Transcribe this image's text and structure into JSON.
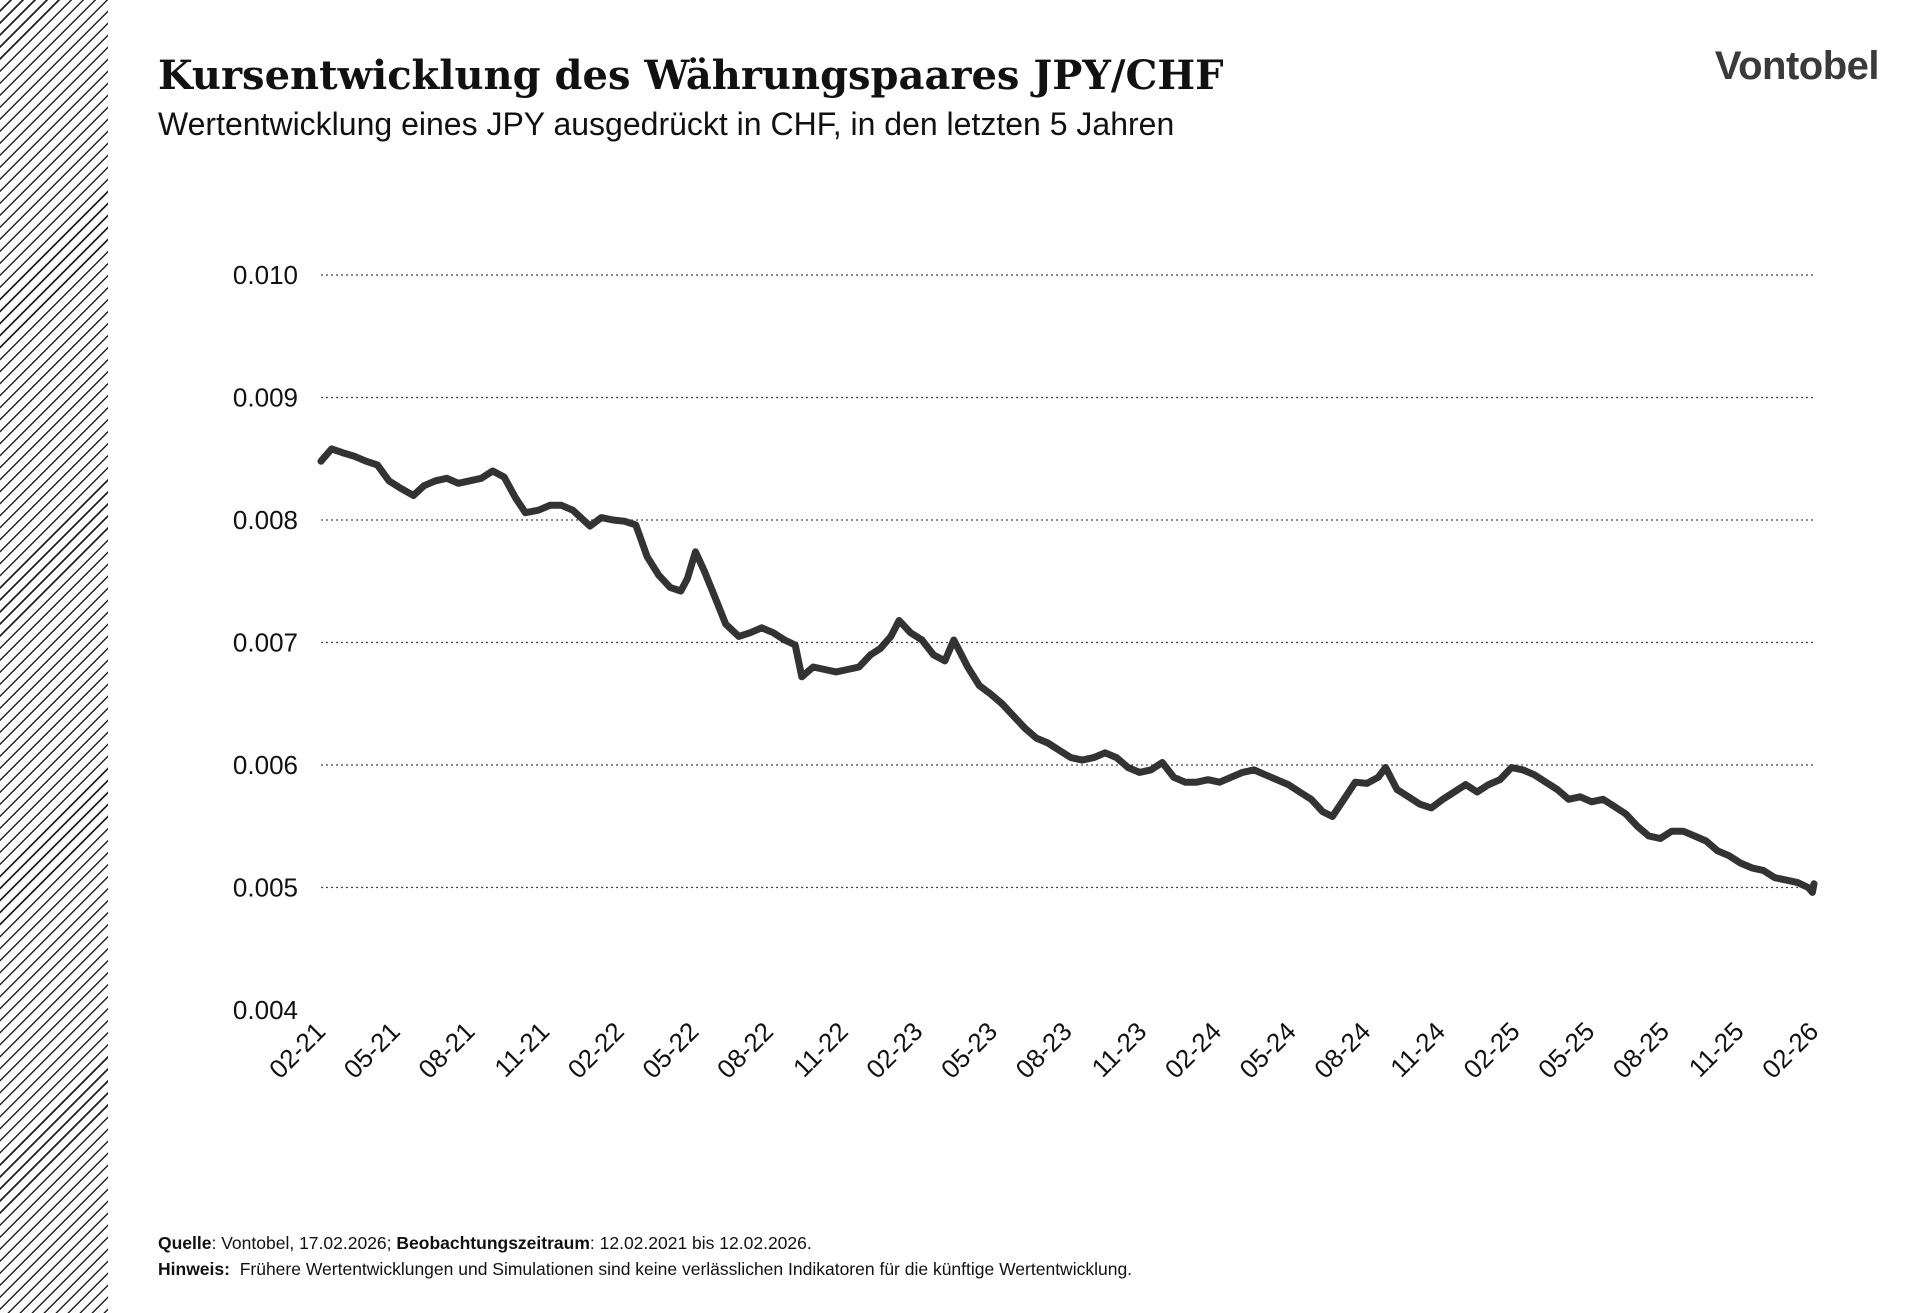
{
  "header": {
    "title": "Kursentwicklung des Währungspaares JPY/CHF",
    "subtitle": "Wertentwicklung eines JPY ausgedrückt in CHF, in den letzten 5 Jahren",
    "logo": "Vontobel"
  },
  "footer": {
    "source_label": "Quelle",
    "source_text": ": Vontobel, 17.02.2026; ",
    "period_label": "Beobachtungszeitraum",
    "period_text": ": 12.02.2021 bis 12.02.2026.",
    "note_label": "Hinweis:",
    "note_text": "Frühere Wertentwicklungen und Simulationen sind keine verlässlichen Indikatoren für die künftige Wertentwicklung."
  },
  "colors": {
    "line": "#333333",
    "grid": "#444444",
    "hatch": "#222222"
  },
  "chart_data": {
    "type": "line",
    "title": "Kursentwicklung des Währungspaares JPY/CHF",
    "subtitle": "Wertentwicklung eines JPY ausgedrückt in CHF, in den letzten 5 Jahren",
    "xlabel": "",
    "ylabel": "",
    "ylim": [
      0.004,
      0.01
    ],
    "yticks": [
      "0.010",
      "0.009",
      "0.008",
      "0.007",
      "0.006",
      "0.005",
      "0.004"
    ],
    "ytick_values": [
      0.01,
      0.009,
      0.008,
      0.007,
      0.006,
      0.005,
      0.004
    ],
    "xticks": [
      "02-21",
      "05-21",
      "08-21",
      "11-21",
      "02-22",
      "05-22",
      "08-22",
      "11-22",
      "02-23",
      "05-23",
      "08-23",
      "11-23",
      "02-24",
      "05-24",
      "08-24",
      "11-24",
      "02-25",
      "05-25",
      "08-25",
      "11-25",
      "02-26"
    ],
    "xrange": [
      "2021-02-12",
      "2026-02-12"
    ],
    "grid": true,
    "legend": "none",
    "series": [
      {
        "values": [
          [
            "2021-02-12",
            0.00848
          ],
          [
            "2021-02-25",
            0.00858
          ],
          [
            "2021-03-10",
            0.00855
          ],
          [
            "2021-03-25",
            0.00852
          ],
          [
            "2021-04-08",
            0.00848
          ],
          [
            "2021-04-22",
            0.00845
          ],
          [
            "2021-05-06",
            0.00832
          ],
          [
            "2021-05-20",
            0.00826
          ],
          [
            "2021-06-05",
            0.0082
          ],
          [
            "2021-06-18",
            0.00828
          ],
          [
            "2021-07-02",
            0.00832
          ],
          [
            "2021-07-16",
            0.00834
          ],
          [
            "2021-07-30",
            0.0083
          ],
          [
            "2021-08-13",
            0.00832
          ],
          [
            "2021-08-27",
            0.00834
          ],
          [
            "2021-09-10",
            0.0084
          ],
          [
            "2021-09-24",
            0.00835
          ],
          [
            "2021-10-08",
            0.00818
          ],
          [
            "2021-10-20",
            0.00806
          ],
          [
            "2021-11-05",
            0.00808
          ],
          [
            "2021-11-19",
            0.00812
          ],
          [
            "2021-12-03",
            0.00812
          ],
          [
            "2021-12-17",
            0.00808
          ],
          [
            "2022-01-07",
            0.00795
          ],
          [
            "2022-01-21",
            0.00802
          ],
          [
            "2022-02-04",
            0.008
          ],
          [
            "2022-02-18",
            0.00799
          ],
          [
            "2022-03-04",
            0.00796
          ],
          [
            "2022-03-18",
            0.0077
          ],
          [
            "2022-04-01",
            0.00755
          ],
          [
            "2022-04-15",
            0.00745
          ],
          [
            "2022-04-28",
            0.00742
          ],
          [
            "2022-05-06",
            0.00752
          ],
          [
            "2022-05-16",
            0.00774
          ],
          [
            "2022-05-27",
            0.00758
          ],
          [
            "2022-06-10",
            0.00735
          ],
          [
            "2022-06-22",
            0.00715
          ],
          [
            "2022-07-08",
            0.00705
          ],
          [
            "2022-07-22",
            0.00708
          ],
          [
            "2022-08-05",
            0.00712
          ],
          [
            "2022-08-19",
            0.00708
          ],
          [
            "2022-09-02",
            0.00702
          ],
          [
            "2022-09-15",
            0.00698
          ],
          [
            "2022-09-23",
            0.00672
          ],
          [
            "2022-10-07",
            0.0068
          ],
          [
            "2022-10-21",
            0.00678
          ],
          [
            "2022-11-04",
            0.00676
          ],
          [
            "2022-11-18",
            0.00678
          ],
          [
            "2022-12-02",
            0.0068
          ],
          [
            "2022-12-16",
            0.0069
          ],
          [
            "2022-12-28",
            0.00695
          ],
          [
            "2023-01-10",
            0.00705
          ],
          [
            "2023-01-20",
            0.00718
          ],
          [
            "2023-02-03",
            0.00708
          ],
          [
            "2023-02-17",
            0.00702
          ],
          [
            "2023-03-03",
            0.0069
          ],
          [
            "2023-03-17",
            0.00685
          ],
          [
            "2023-03-28",
            0.00702
          ],
          [
            "2023-04-14",
            0.0068
          ],
          [
            "2023-04-28",
            0.00665
          ],
          [
            "2023-05-12",
            0.00658
          ],
          [
            "2023-05-26",
            0.0065
          ],
          [
            "2023-06-09",
            0.0064
          ],
          [
            "2023-06-23",
            0.0063
          ],
          [
            "2023-07-07",
            0.00622
          ],
          [
            "2023-07-21",
            0.00618
          ],
          [
            "2023-08-04",
            0.00612
          ],
          [
            "2023-08-18",
            0.00606
          ],
          [
            "2023-09-01",
            0.00604
          ],
          [
            "2023-09-15",
            0.00606
          ],
          [
            "2023-09-29",
            0.0061
          ],
          [
            "2023-10-13",
            0.00606
          ],
          [
            "2023-10-27",
            0.00598
          ],
          [
            "2023-11-10",
            0.00594
          ],
          [
            "2023-11-24",
            0.00596
          ],
          [
            "2023-12-08",
            0.00602
          ],
          [
            "2023-12-22",
            0.0059
          ],
          [
            "2024-01-05",
            0.00586
          ],
          [
            "2024-01-19",
            0.00586
          ],
          [
            "2024-02-02",
            0.00588
          ],
          [
            "2024-02-16",
            0.00586
          ],
          [
            "2024-03-01",
            0.0059
          ],
          [
            "2024-03-15",
            0.00594
          ],
          [
            "2024-03-29",
            0.00596
          ],
          [
            "2024-04-12",
            0.00592
          ],
          [
            "2024-04-26",
            0.00588
          ],
          [
            "2024-05-10",
            0.00584
          ],
          [
            "2024-05-24",
            0.00578
          ],
          [
            "2024-06-07",
            0.00572
          ],
          [
            "2024-06-21",
            0.00562
          ],
          [
            "2024-07-03",
            0.00558
          ],
          [
            "2024-07-17",
            0.00572
          ],
          [
            "2024-07-31",
            0.00586
          ],
          [
            "2024-08-14",
            0.00585
          ],
          [
            "2024-08-28",
            0.0059
          ],
          [
            "2024-09-06",
            0.00598
          ],
          [
            "2024-09-20",
            0.0058
          ],
          [
            "2024-10-04",
            0.00574
          ],
          [
            "2024-10-18",
            0.00568
          ],
          [
            "2024-11-01",
            0.00565
          ],
          [
            "2024-11-15",
            0.00572
          ],
          [
            "2024-11-29",
            0.00578
          ],
          [
            "2024-12-13",
            0.00584
          ],
          [
            "2024-12-27",
            0.00578
          ],
          [
            "2025-01-10",
            0.00584
          ],
          [
            "2025-01-24",
            0.00588
          ],
          [
            "2025-02-07",
            0.00598
          ],
          [
            "2025-02-21",
            0.00596
          ],
          [
            "2025-03-07",
            0.00592
          ],
          [
            "2025-03-21",
            0.00586
          ],
          [
            "2025-04-04",
            0.0058
          ],
          [
            "2025-04-18",
            0.00572
          ],
          [
            "2025-05-02",
            0.00574
          ],
          [
            "2025-05-16",
            0.0057
          ],
          [
            "2025-05-30",
            0.00572
          ],
          [
            "2025-06-13",
            0.00566
          ],
          [
            "2025-06-27",
            0.0056
          ],
          [
            "2025-07-11",
            0.0055
          ],
          [
            "2025-07-25",
            0.00542
          ],
          [
            "2025-08-08",
            0.0054
          ],
          [
            "2025-08-22",
            0.00546
          ],
          [
            "2025-09-05",
            0.00546
          ],
          [
            "2025-09-19",
            0.00542
          ],
          [
            "2025-10-03",
            0.00538
          ],
          [
            "2025-10-17",
            0.0053
          ],
          [
            "2025-10-31",
            0.00526
          ],
          [
            "2025-11-14",
            0.0052
          ],
          [
            "2025-11-28",
            0.00516
          ],
          [
            "2025-12-12",
            0.00514
          ],
          [
            "2025-12-26",
            0.00508
          ],
          [
            "2026-01-09",
            0.00506
          ],
          [
            "2026-01-23",
            0.00504
          ],
          [
            "2026-02-05",
            0.005
          ],
          [
            "2026-02-10",
            0.00496
          ],
          [
            "2026-02-12",
            0.00503
          ]
        ]
      }
    ]
  }
}
